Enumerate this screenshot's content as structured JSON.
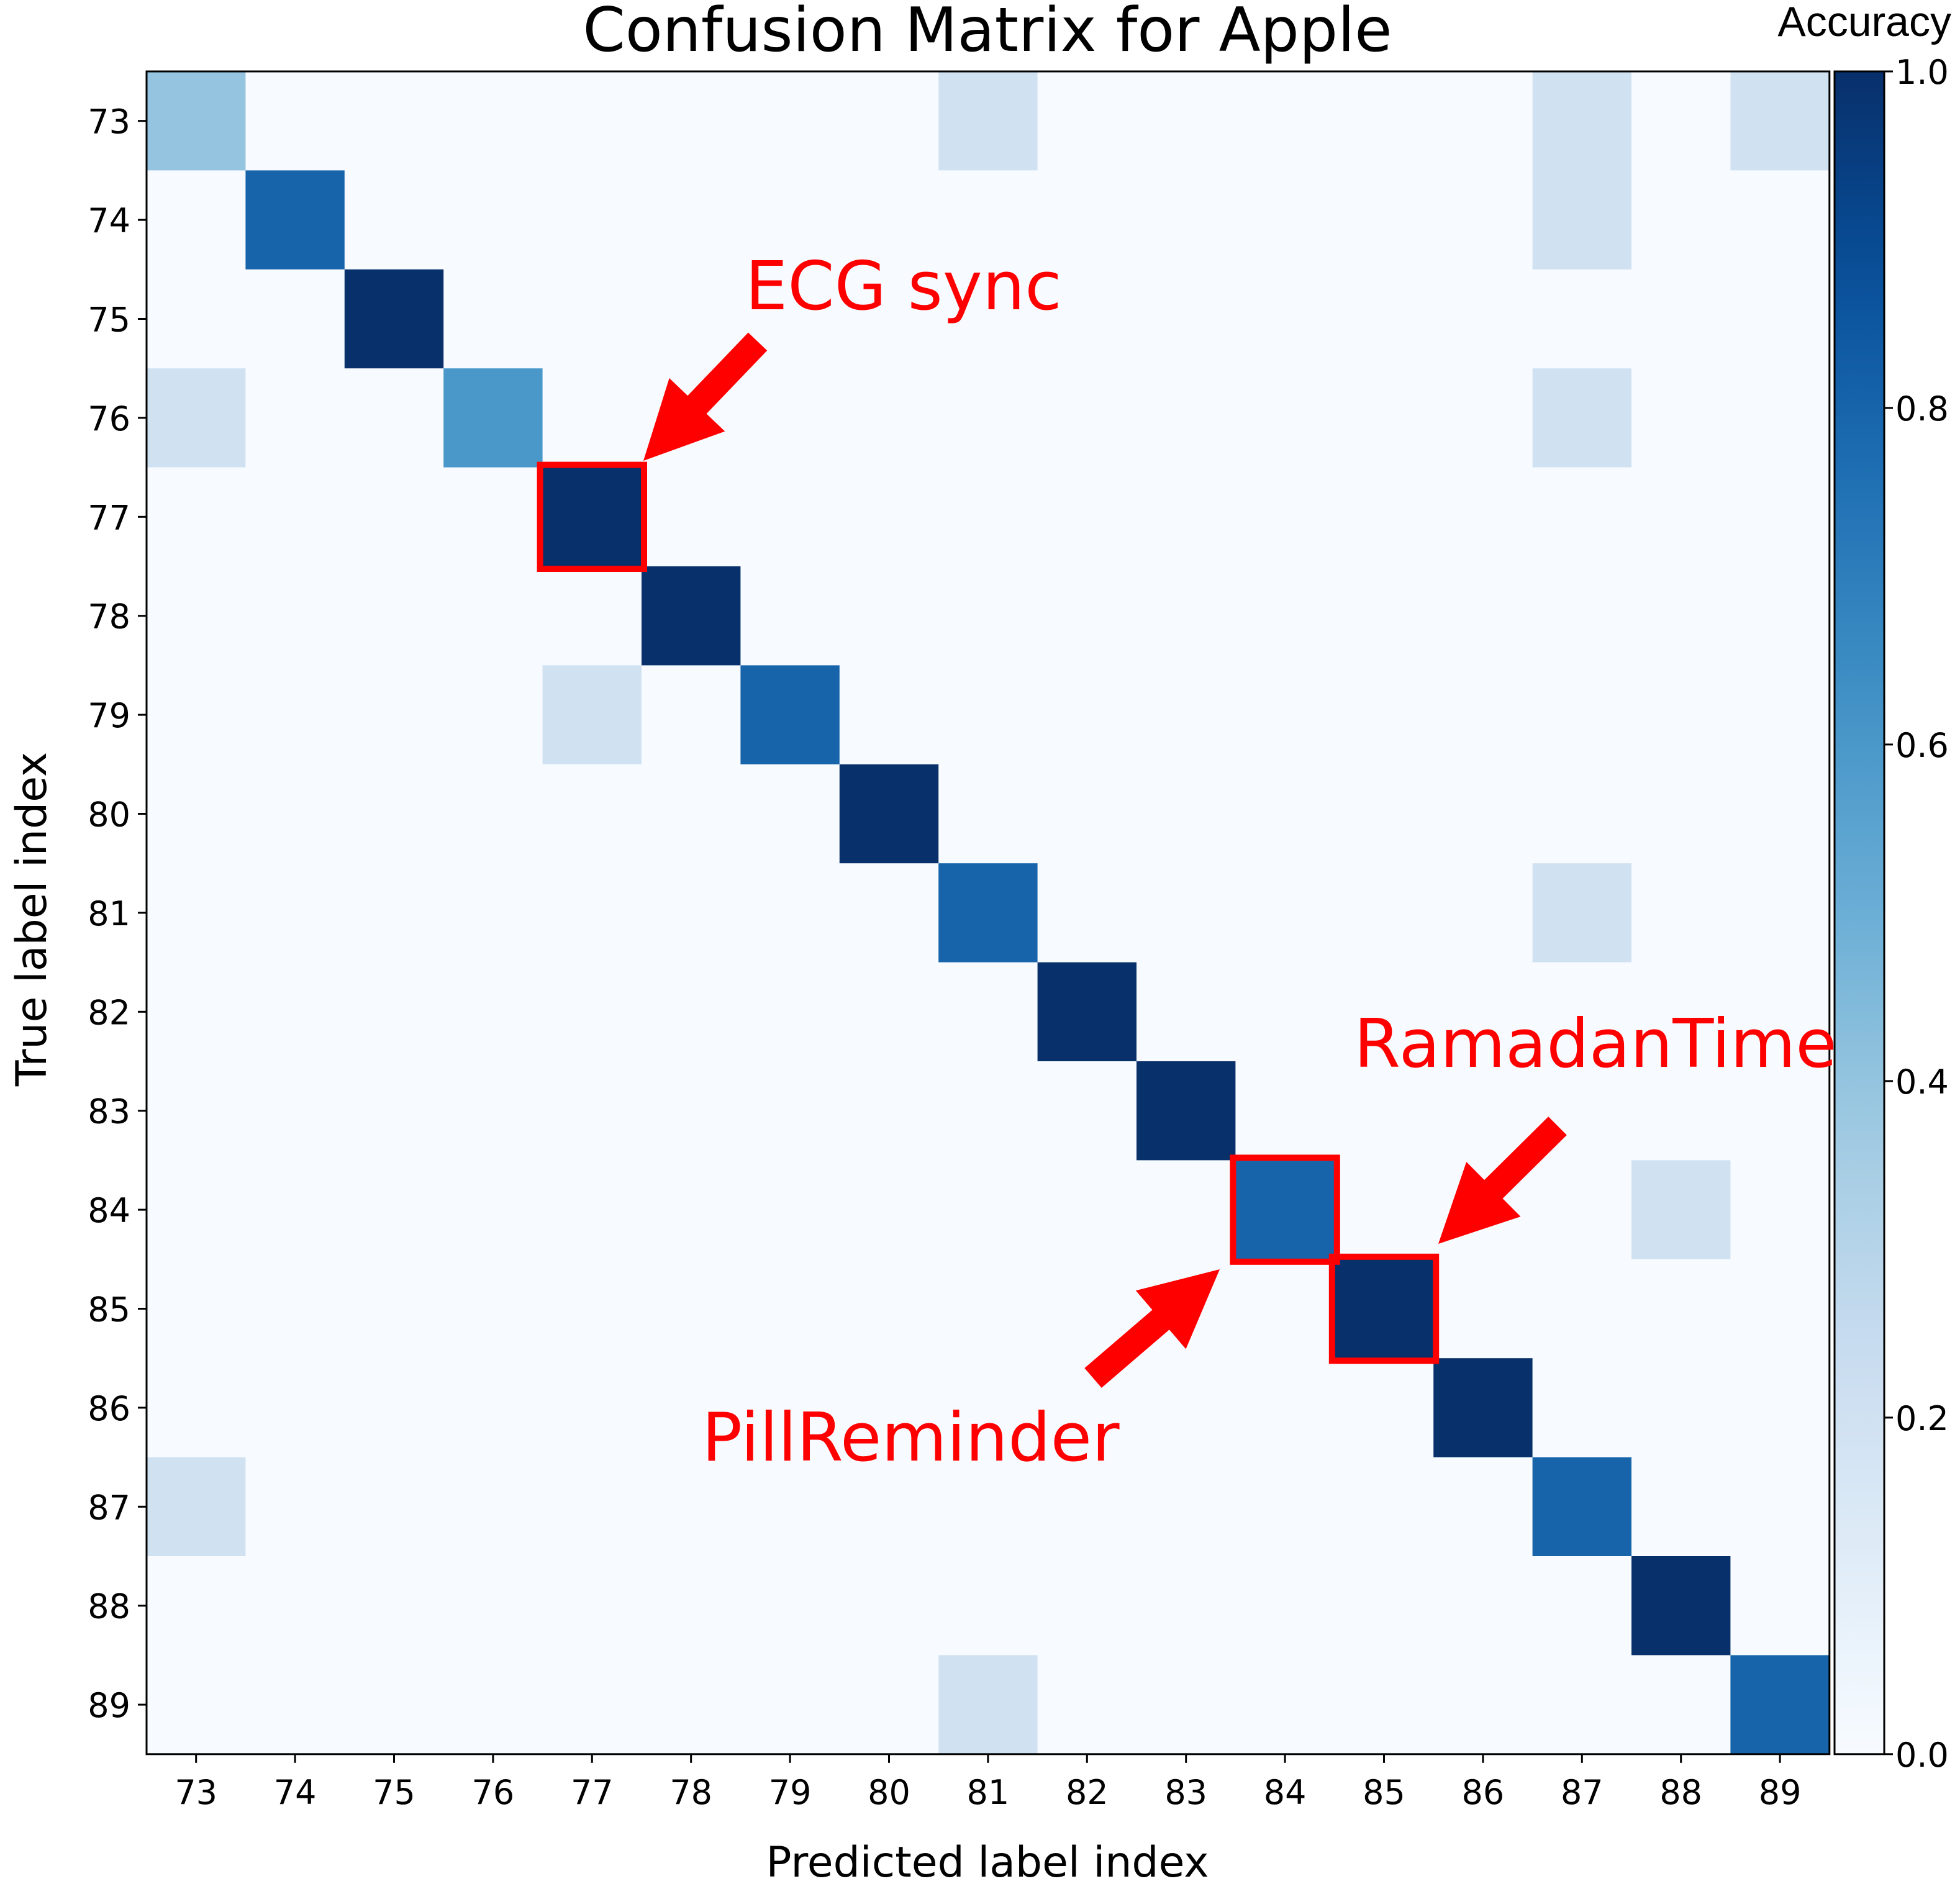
{
  "chart_data": {
    "type": "heatmap",
    "title": "Confusion Matrix for Apple",
    "xlabel": "Predicted label index",
    "ylabel": "True label index",
    "x_labels": [
      "73",
      "74",
      "75",
      "76",
      "77",
      "78",
      "79",
      "80",
      "81",
      "82",
      "83",
      "84",
      "85",
      "86",
      "87",
      "88",
      "89"
    ],
    "y_labels": [
      "73",
      "74",
      "75",
      "76",
      "77",
      "78",
      "79",
      "80",
      "81",
      "82",
      "83",
      "84",
      "85",
      "86",
      "87",
      "88",
      "89"
    ],
    "colormap": "Blues",
    "values": [
      [
        0.4,
        0,
        0,
        0,
        0,
        0,
        0,
        0,
        0.2,
        0,
        0,
        0,
        0,
        0,
        0.2,
        0,
        0.2
      ],
      [
        0,
        0.8,
        0,
        0,
        0,
        0,
        0,
        0,
        0,
        0,
        0,
        0,
        0,
        0,
        0.2,
        0,
        0
      ],
      [
        0,
        0,
        1.0,
        0,
        0,
        0,
        0,
        0,
        0,
        0,
        0,
        0,
        0,
        0,
        0,
        0,
        0
      ],
      [
        0.2,
        0,
        0,
        0.6,
        0,
        0,
        0,
        0,
        0,
        0,
        0,
        0,
        0,
        0,
        0.2,
        0,
        0
      ],
      [
        0,
        0,
        0,
        0,
        1.0,
        0,
        0,
        0,
        0,
        0,
        0,
        0,
        0,
        0,
        0,
        0,
        0
      ],
      [
        0,
        0,
        0,
        0,
        0,
        1.0,
        0,
        0,
        0,
        0,
        0,
        0,
        0,
        0,
        0,
        0,
        0
      ],
      [
        0,
        0,
        0,
        0,
        0.2,
        0,
        0.8,
        0,
        0,
        0,
        0,
        0,
        0,
        0,
        0,
        0,
        0
      ],
      [
        0,
        0,
        0,
        0,
        0,
        0,
        0,
        1.0,
        0,
        0,
        0,
        0,
        0,
        0,
        0,
        0,
        0
      ],
      [
        0,
        0,
        0,
        0,
        0,
        0,
        0,
        0,
        0.8,
        0,
        0,
        0,
        0,
        0,
        0.2,
        0,
        0
      ],
      [
        0,
        0,
        0,
        0,
        0,
        0,
        0,
        0,
        0,
        1.0,
        0,
        0,
        0,
        0,
        0,
        0,
        0
      ],
      [
        0,
        0,
        0,
        0,
        0,
        0,
        0,
        0,
        0,
        0,
        1.0,
        0,
        0,
        0,
        0,
        0,
        0
      ],
      [
        0,
        0,
        0,
        0,
        0,
        0,
        0,
        0,
        0,
        0,
        0,
        0.8,
        0,
        0,
        0,
        0.2,
        0
      ],
      [
        0,
        0,
        0,
        0,
        0,
        0,
        0,
        0,
        0,
        0,
        0,
        0,
        1.0,
        0,
        0,
        0,
        0
      ],
      [
        0,
        0,
        0,
        0,
        0,
        0,
        0,
        0,
        0,
        0,
        0,
        0,
        0,
        1.0,
        0,
        0,
        0
      ],
      [
        0.2,
        0,
        0,
        0,
        0,
        0,
        0,
        0,
        0,
        0,
        0,
        0,
        0,
        0,
        0.8,
        0,
        0
      ],
      [
        0,
        0,
        0,
        0,
        0,
        0,
        0,
        0,
        0,
        0,
        0,
        0,
        0,
        0,
        0,
        1.0,
        0
      ],
      [
        0,
        0,
        0,
        0,
        0,
        0,
        0,
        0,
        0.2,
        0,
        0,
        0,
        0,
        0,
        0,
        0,
        0.8
      ]
    ],
    "colorbar": {
      "title": "Accuracy",
      "range": [
        0.0,
        1.0
      ],
      "ticks": [
        "0.0",
        "0.2",
        "0.4",
        "0.6",
        "0.8",
        "1.0"
      ]
    },
    "highlighted_cells": [
      {
        "row": "77",
        "col": "77"
      },
      {
        "row": "84",
        "col": "84"
      },
      {
        "row": "85",
        "col": "85"
      }
    ],
    "annotations": [
      {
        "text": "ECG sync",
        "target": {
          "row": "77",
          "col": "77"
        }
      },
      {
        "text": "RamadanTime",
        "target": {
          "row": "85",
          "col": "85"
        }
      },
      {
        "text": "PillReminder",
        "target": {
          "row": "84",
          "col": "84"
        }
      }
    ],
    "annotation_color": "#ff0000",
    "grid": false
  }
}
